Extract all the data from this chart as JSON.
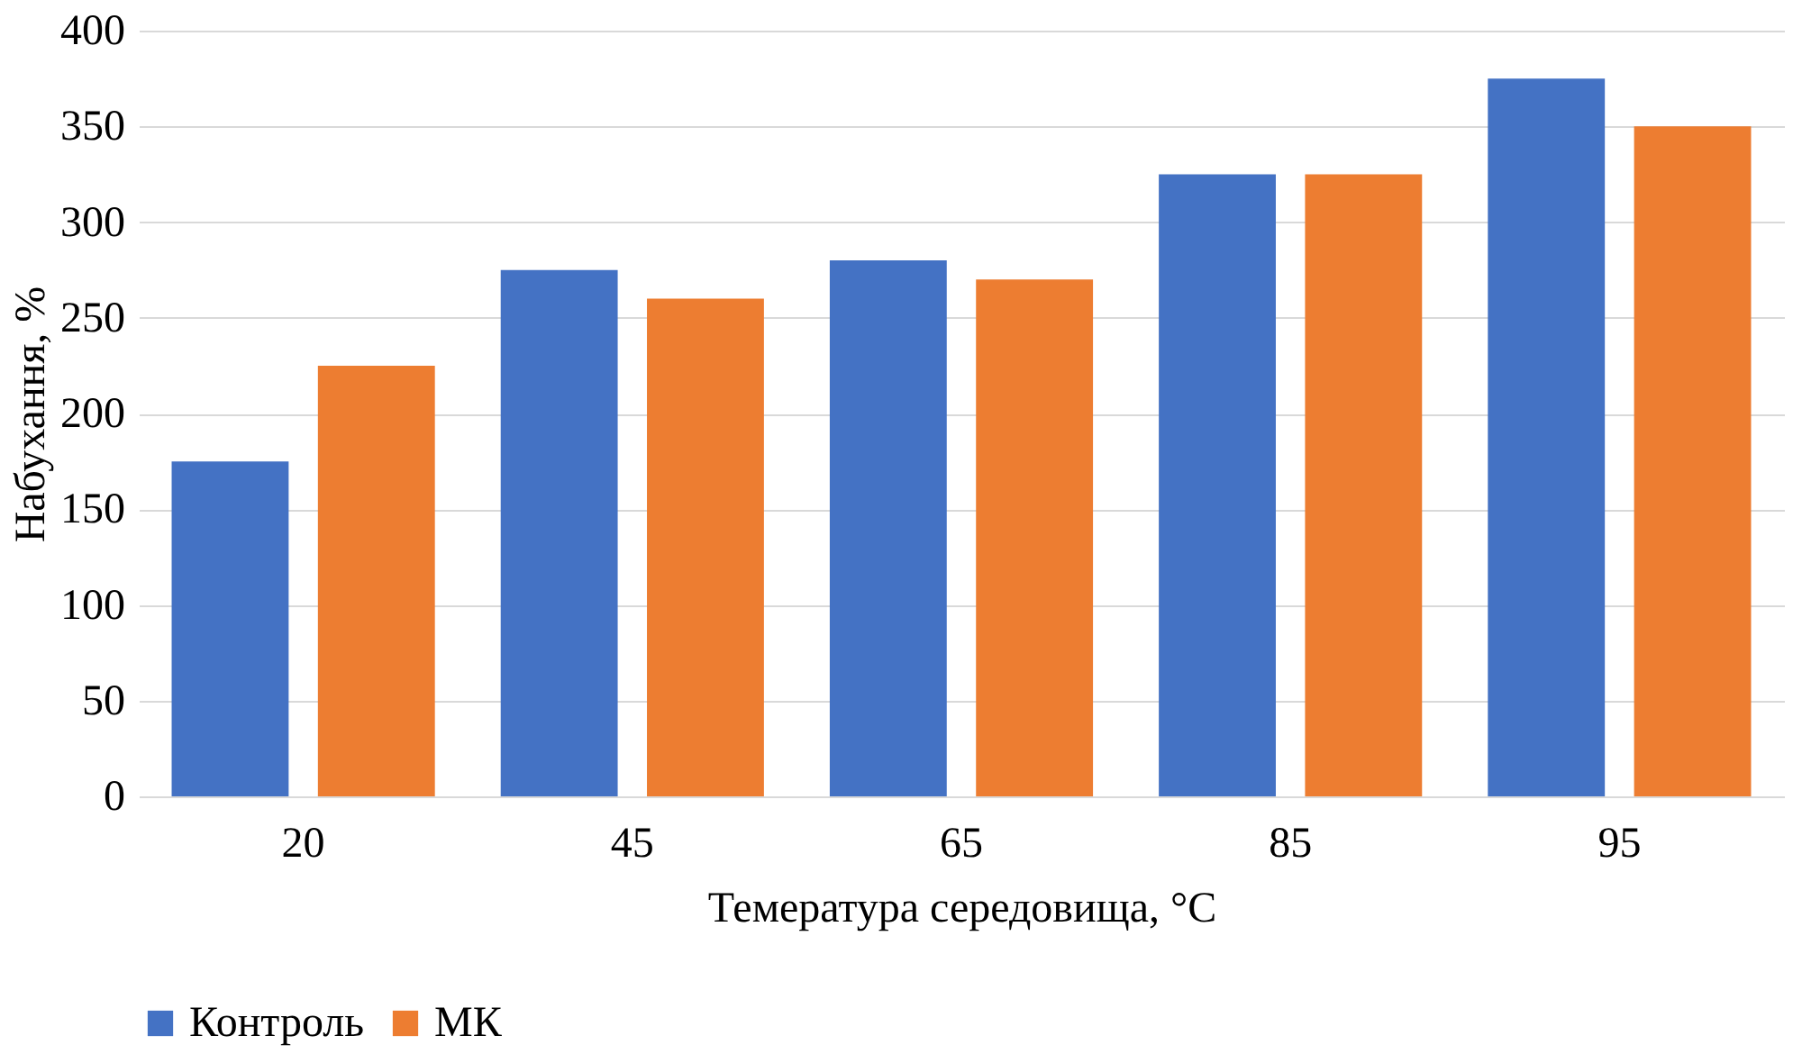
{
  "chart_data": {
    "type": "bar",
    "xlabel": "Темература середовища, °С",
    "ylabel": "Набухання, %",
    "categories": [
      "20",
      "45",
      "65",
      "85",
      "95"
    ],
    "series": [
      {
        "name": "Контроль",
        "color": "#4472c4",
        "values": [
          175,
          275,
          280,
          325,
          375
        ]
      },
      {
        "name": "МК",
        "color": "#ed7d31",
        "values": [
          225,
          260,
          270,
          325,
          350
        ]
      }
    ],
    "ylim": [
      0,
      400
    ],
    "yticks": [
      0,
      50,
      100,
      150,
      200,
      250,
      300,
      350,
      400
    ],
    "grid": "y",
    "legend": "bottom"
  }
}
